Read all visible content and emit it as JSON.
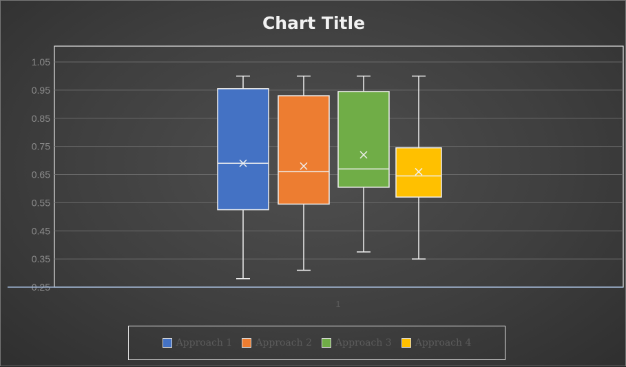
{
  "chart_data": {
    "type": "box",
    "title": "Chart Title",
    "xlabel": "",
    "ylabel": "",
    "ylim": [
      0.25,
      1.05
    ],
    "y_ticks": [
      "1.05",
      "0.95",
      "0.85",
      "0.75",
      "0.65",
      "0.55",
      "0.45",
      "0.35",
      "0.25"
    ],
    "x_ticks": [
      "1"
    ],
    "grid": true,
    "legend_position": "bottom",
    "series": [
      {
        "name": "Approach 1",
        "color": "#4472C4",
        "min": 0.28,
        "q1": 0.525,
        "median": 0.69,
        "mean": 0.69,
        "q3": 0.955,
        "max": 1.0
      },
      {
        "name": "Approach 2",
        "color": "#ED7D31",
        "min": 0.31,
        "q1": 0.545,
        "median": 0.66,
        "mean": 0.68,
        "q3": 0.93,
        "max": 1.0
      },
      {
        "name": "Approach 3",
        "color": "#70AD47",
        "min": 0.375,
        "q1": 0.605,
        "median": 0.67,
        "mean": 0.72,
        "q3": 0.945,
        "max": 1.0
      },
      {
        "name": "Approach 4",
        "color": "#FFC000",
        "min": 0.35,
        "q1": 0.57,
        "median": 0.645,
        "mean": 0.66,
        "q3": 0.745,
        "max": 1.0
      }
    ]
  }
}
